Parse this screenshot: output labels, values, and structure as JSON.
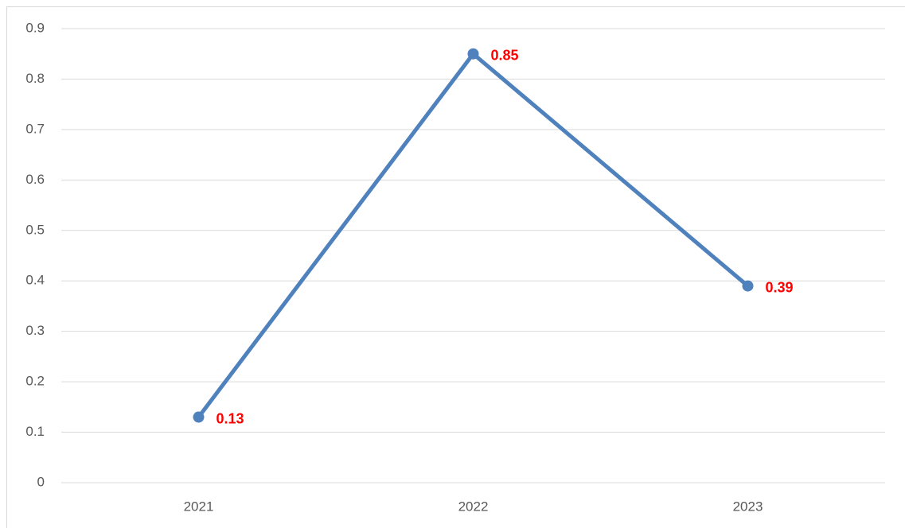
{
  "chart_data": {
    "type": "line",
    "categories": [
      "2021",
      "2022",
      "2023"
    ],
    "series": [
      {
        "color": "#4f81bd",
        "values": [
          0.13,
          0.85,
          0.39
        ]
      }
    ],
    "ylim": [
      0,
      0.9
    ],
    "yticks": [
      0,
      0.1,
      0.2,
      0.3,
      0.4,
      0.5,
      0.6,
      0.7,
      0.8,
      0.9
    ],
    "grid": true,
    "data_label_color": "#ff0000"
  }
}
